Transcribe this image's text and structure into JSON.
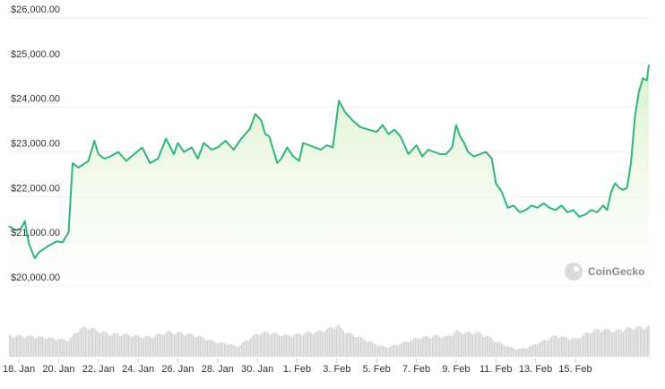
{
  "chart_data": {
    "type": "area",
    "watermark": "CoinGecko",
    "line_color": "#2fb57c",
    "fill_color": "#d9f0c8",
    "volume_color": "#d3d3d3",
    "grid": true,
    "ylim": [
      19500,
      26200
    ],
    "xlim_days": [
      17.5,
      49.7
    ],
    "y_ticks": [
      {
        "value": 20000,
        "label": "$20,000.00"
      },
      {
        "value": 21000,
        "label": "$21,000.00"
      },
      {
        "value": 22000,
        "label": "$22,000.00"
      },
      {
        "value": 23000,
        "label": "$23,000.00"
      },
      {
        "value": 24000,
        "label": "$24,000.00"
      },
      {
        "value": 25000,
        "label": "$25,000.00"
      },
      {
        "value": 26000,
        "label": "$26,000.00"
      }
    ],
    "x_ticks": [
      {
        "day": 18,
        "label": "18. Jan"
      },
      {
        "day": 20,
        "label": "20. Jan"
      },
      {
        "day": 22,
        "label": "22. Jan"
      },
      {
        "day": 24,
        "label": "24. Jan"
      },
      {
        "day": 26,
        "label": "26. Jan"
      },
      {
        "day": 28,
        "label": "28. Jan"
      },
      {
        "day": 30,
        "label": "30. Jan"
      },
      {
        "day": 32,
        "label": "1. Feb"
      },
      {
        "day": 34,
        "label": "3. Feb"
      },
      {
        "day": 36,
        "label": "5. Feb"
      },
      {
        "day": 38,
        "label": "7. Feb"
      },
      {
        "day": 40,
        "label": "9. Feb"
      },
      {
        "day": 42,
        "label": "11. Feb"
      },
      {
        "day": 44,
        "label": "13. Feb"
      },
      {
        "day": 46,
        "label": "15. Feb"
      }
    ],
    "price_series": {
      "x": [
        17.5,
        17.8,
        18.1,
        18.3,
        18.5,
        18.8,
        19.0,
        19.5,
        19.9,
        20.2,
        20.5,
        20.7,
        21.0,
        21.5,
        21.8,
        22.0,
        22.3,
        22.6,
        23.0,
        23.4,
        23.8,
        24.2,
        24.6,
        25.0,
        25.4,
        25.8,
        26.0,
        26.3,
        26.7,
        27.0,
        27.3,
        27.7,
        28.0,
        28.4,
        28.8,
        29.2,
        29.6,
        29.9,
        30.2,
        30.4,
        30.6,
        30.8,
        31.0,
        31.2,
        31.5,
        31.8,
        32.1,
        32.3,
        32.6,
        32.9,
        33.2,
        33.5,
        33.8,
        34.1,
        34.4,
        34.8,
        35.2,
        35.6,
        36.0,
        36.3,
        36.6,
        36.9,
        37.2,
        37.6,
        38.0,
        38.3,
        38.6,
        38.9,
        39.2,
        39.5,
        39.8,
        40.0,
        40.2,
        40.4,
        40.6,
        40.9,
        41.2,
        41.5,
        41.8,
        42.0,
        42.3,
        42.6,
        42.9,
        43.2,
        43.5,
        43.8,
        44.1,
        44.4,
        44.7,
        45.0,
        45.3,
        45.6,
        45.9,
        46.2,
        46.5,
        46.8,
        47.1,
        47.4,
        47.6,
        47.8,
        48.0,
        48.2,
        48.4,
        48.6,
        48.8,
        49.0,
        49.2,
        49.4,
        49.6,
        49.7
      ],
      "y": [
        21340,
        21250,
        21280,
        21450,
        20950,
        20620,
        20750,
        20900,
        21000,
        20980,
        21200,
        22750,
        22650,
        22800,
        23250,
        22950,
        22850,
        22900,
        23000,
        22800,
        22950,
        23100,
        22750,
        22850,
        23300,
        22950,
        23200,
        23000,
        23100,
        22850,
        23200,
        23050,
        23100,
        23250,
        23050,
        23300,
        23500,
        23850,
        23700,
        23400,
        23350,
        23050,
        22750,
        22850,
        23100,
        22900,
        22800,
        23200,
        23150,
        23100,
        23050,
        23150,
        23100,
        24150,
        23900,
        23700,
        23550,
        23500,
        23450,
        23600,
        23400,
        23500,
        23350,
        22950,
        23150,
        22900,
        23050,
        23000,
        22950,
        22950,
        23100,
        23600,
        23350,
        23200,
        23000,
        22900,
        22950,
        23000,
        22850,
        22300,
        22100,
        21750,
        21800,
        21650,
        21700,
        21800,
        21750,
        21850,
        21750,
        21700,
        21800,
        21650,
        21700,
        21550,
        21600,
        21700,
        21650,
        21800,
        21700,
        22100,
        22300,
        22200,
        22150,
        22200,
        22750,
        23800,
        24350,
        24650,
        24600,
        24950
      ]
    },
    "volume_series": {
      "x": [
        17.5,
        18.5,
        19.5,
        20.5,
        21.0,
        21.5,
        22.0,
        22.5,
        23.0,
        23.5,
        24.0,
        24.5,
        25.0,
        25.5,
        26.0,
        26.5,
        27.0,
        27.5,
        28.0,
        28.5,
        29.0,
        29.5,
        30.0,
        30.5,
        31.0,
        31.5,
        32.0,
        32.5,
        33.0,
        33.5,
        34.0,
        34.5,
        35.0,
        35.5,
        36.0,
        36.5,
        37.0,
        37.5,
        38.0,
        38.5,
        39.0,
        39.5,
        40.0,
        40.5,
        41.0,
        41.5,
        42.0,
        42.5,
        43.0,
        43.5,
        44.0,
        44.5,
        45.0,
        45.5,
        46.0,
        46.5,
        47.0,
        47.5,
        48.0,
        48.5,
        49.0,
        49.7
      ],
      "y": [
        0.62,
        0.6,
        0.55,
        0.48,
        0.82,
        0.86,
        0.75,
        0.68,
        0.66,
        0.64,
        0.6,
        0.58,
        0.65,
        0.72,
        0.7,
        0.66,
        0.6,
        0.5,
        0.42,
        0.38,
        0.3,
        0.52,
        0.68,
        0.72,
        0.65,
        0.62,
        0.66,
        0.7,
        0.72,
        0.8,
        0.92,
        0.7,
        0.6,
        0.48,
        0.34,
        0.28,
        0.35,
        0.45,
        0.55,
        0.58,
        0.62,
        0.58,
        0.75,
        0.7,
        0.72,
        0.62,
        0.45,
        0.32,
        0.22,
        0.26,
        0.38,
        0.5,
        0.62,
        0.56,
        0.52,
        0.68,
        0.78,
        0.8,
        0.75,
        0.82,
        0.85,
        0.88
      ]
    }
  }
}
